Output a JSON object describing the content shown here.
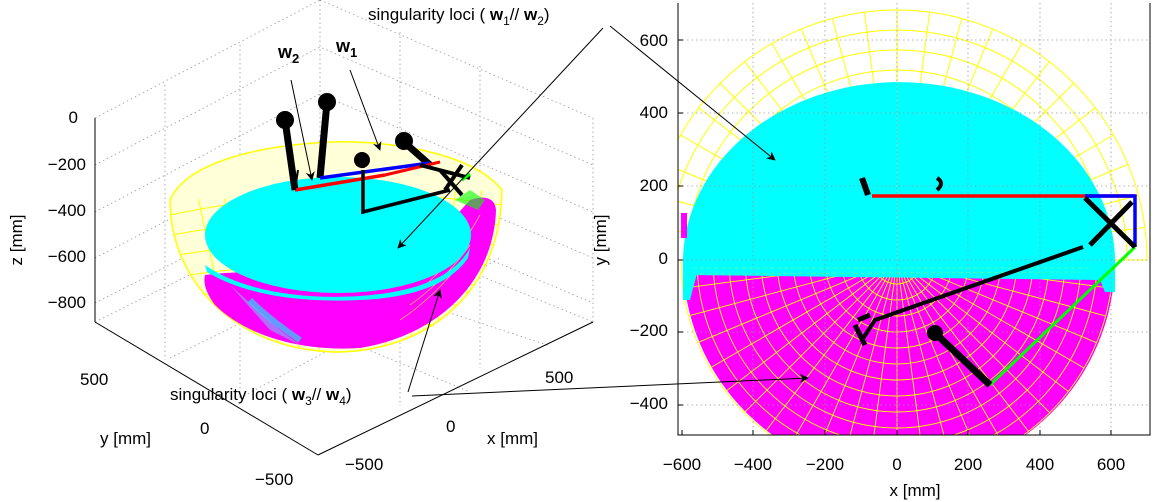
{
  "annotations": {
    "top": {
      "prefix": "singularity loci ( ",
      "a": "w",
      "a_sub": "1",
      "sep": "// ",
      "b": "w",
      "b_sub": "2",
      "suffix": ")"
    },
    "bottom": {
      "prefix": "singularity loci ( ",
      "a": "w",
      "a_sub": "3",
      "sep": "// ",
      "b": "w",
      "b_sub": "4",
      "suffix": ")"
    }
  },
  "vector_labels": {
    "w2": {
      "base": "w",
      "sub": "2"
    },
    "w1": {
      "base": "w",
      "sub": "1"
    }
  },
  "left_plot": {
    "zlabel": "z [mm]",
    "ylabel": "y [mm]",
    "xlabel": "x [mm]",
    "z_ticks": [
      "0",
      "−200",
      "−400",
      "−600",
      "−800"
    ],
    "y_ticks": [
      "500",
      "0",
      "−500"
    ],
    "x_ticks": [
      "−500",
      "0",
      "500"
    ]
  },
  "right_plot": {
    "xlabel": "x [mm]",
    "ylabel": "y [mm]",
    "x_ticks": [
      "−600",
      "−400",
      "−200",
      "0",
      "200",
      "400",
      "600"
    ],
    "y_ticks": [
      "600",
      "400",
      "200",
      "0",
      "−200",
      "−400"
    ]
  },
  "colors": {
    "yellow": "#ffff00",
    "cyan": "#00ffff",
    "magenta": "#ff00ff",
    "red": "#ff0000",
    "blue": "#0000ff",
    "green": "#00ff00",
    "black": "#000000"
  }
}
